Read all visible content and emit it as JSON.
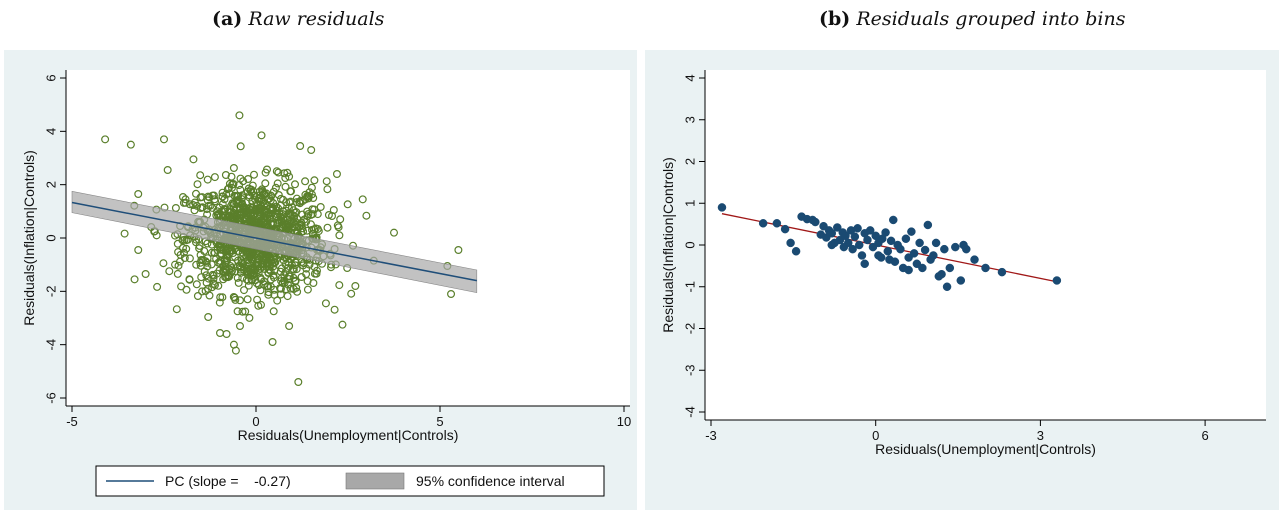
{
  "captions": {
    "a": {
      "label": "(a)",
      "text": "Raw residuals"
    },
    "b": {
      "label": "(b)",
      "text": "Residuals grouped into bins"
    }
  },
  "colors": {
    "panel_bg": "#eaf2f3",
    "scatter_raw": "#5a7f2b",
    "fit_line_a": "#1f4e79",
    "ci_band": "#a8a8a8",
    "scatter_bins": "#1a4a72",
    "fit_line_b": "#a01818"
  },
  "chart_data": [
    {
      "type": "scatter",
      "marker": "hollow-circle",
      "xlabel": "Residuals(Unemployment|Controls)",
      "ylabel": "Residuals(Inflation|Controls)",
      "xlim": [
        -5,
        10
      ],
      "ylim": [
        -6,
        6
      ],
      "xticks": [
        -5,
        0,
        5,
        10
      ],
      "yticks": [
        -6,
        -4,
        -2,
        0,
        2,
        4,
        6
      ],
      "grid": false,
      "outliers": [
        [
          -4.1,
          3.7
        ],
        [
          -3.4,
          3.5
        ],
        [
          -3.2,
          1.65
        ],
        [
          -3.3,
          -1.55
        ],
        [
          -3.0,
          -1.35
        ],
        [
          -3.2,
          -0.45
        ],
        [
          -2.5,
          3.7
        ],
        [
          -0.45,
          4.6
        ],
        [
          0.15,
          3.85
        ],
        [
          1.2,
          3.45
        ],
        [
          1.5,
          3.3
        ],
        [
          2.2,
          2.4
        ],
        [
          2.9,
          1.45
        ],
        [
          3.2,
          -0.85
        ],
        [
          3.75,
          0.2
        ],
        [
          5.2,
          -1.05
        ],
        [
          5.5,
          -0.45
        ],
        [
          5.3,
          -2.1
        ],
        [
          1.15,
          -5.4
        ],
        [
          0.45,
          -3.9
        ],
        [
          -0.8,
          -3.6
        ],
        [
          -0.6,
          -4.0
        ],
        [
          0.9,
          -3.3
        ],
        [
          2.35,
          -3.25
        ],
        [
          -2.4,
          2.55
        ],
        [
          -2.7,
          0.1
        ],
        [
          -2.2,
          -1.0
        ],
        [
          -1.7,
          2.95
        ],
        [
          1.9,
          -2.45
        ],
        [
          2.7,
          -1.8
        ]
      ],
      "cloud": {
        "mean": [
          0,
          0
        ],
        "sd": [
          0.95,
          1.05
        ],
        "n": 1100
      },
      "fit_line": {
        "x": [
          -5,
          6
        ],
        "y": [
          1.33,
          -1.6
        ]
      },
      "ci_band": {
        "x": [
          -5,
          6
        ],
        "upper": [
          1.75,
          -1.2
        ],
        "lower": [
          0.95,
          -2.05
        ]
      },
      "legend": {
        "placement": "bottom",
        "items": [
          {
            "label": "PC (slope =    -0.27)",
            "kind": "line"
          },
          {
            "label": "95% confidence interval",
            "kind": "area"
          }
        ]
      }
    },
    {
      "type": "scatter",
      "marker": "filled-circle",
      "xlabel": "Residuals(Unemployment|Controls)",
      "ylabel": "Residuals(Inflation|Controls)",
      "xlim": [
        -3,
        7
      ],
      "ylim": [
        -4,
        4
      ],
      "xticks": [
        -3,
        0,
        3,
        6
      ],
      "yticks": [
        -4,
        -3,
        -2,
        -1,
        0,
        1,
        2,
        3,
        4
      ],
      "grid": false,
      "points": [
        [
          -2.8,
          0.9
        ],
        [
          -2.05,
          0.52
        ],
        [
          -1.8,
          0.52
        ],
        [
          -1.65,
          0.38
        ],
        [
          -1.55,
          0.05
        ],
        [
          -1.45,
          -0.15
        ],
        [
          -1.35,
          0.68
        ],
        [
          -1.25,
          0.62
        ],
        [
          -1.15,
          0.6
        ],
        [
          -1.1,
          0.55
        ],
        [
          -1.0,
          0.25
        ],
        [
          -0.95,
          0.45
        ],
        [
          -0.9,
          0.18
        ],
        [
          -0.85,
          0.35
        ],
        [
          -0.8,
          0.28
        ],
        [
          -0.75,
          0.05
        ],
        [
          -0.7,
          0.42
        ],
        [
          -0.65,
          0.12
        ],
        [
          -0.6,
          0.3
        ],
        [
          -0.55,
          0.22
        ],
        [
          -0.5,
          0.05
        ],
        [
          -0.45,
          0.35
        ],
        [
          -0.42,
          -0.1
        ],
        [
          -0.38,
          0.2
        ],
        [
          -0.33,
          0.4
        ],
        [
          -0.3,
          0.0
        ],
        [
          -0.25,
          -0.25
        ],
        [
          -0.2,
          0.28
        ],
        [
          -0.15,
          0.12
        ],
        [
          -0.1,
          0.35
        ],
        [
          -0.05,
          -0.05
        ],
        [
          0.0,
          0.22
        ],
        [
          0.05,
          0.05
        ],
        [
          0.1,
          -0.3
        ],
        [
          0.12,
          0.15
        ],
        [
          0.18,
          0.3
        ],
        [
          0.22,
          -0.15
        ],
        [
          0.28,
          0.1
        ],
        [
          0.32,
          0.6
        ],
        [
          0.35,
          -0.4
        ],
        [
          0.4,
          0.0
        ],
        [
          0.45,
          -0.1
        ],
        [
          0.5,
          -0.55
        ],
        [
          0.55,
          0.15
        ],
        [
          0.6,
          -0.3
        ],
        [
          0.65,
          0.32
        ],
        [
          0.7,
          -0.2
        ],
        [
          0.75,
          -0.45
        ],
        [
          0.8,
          0.05
        ],
        [
          0.85,
          -0.55
        ],
        [
          0.9,
          -0.12
        ],
        [
          0.95,
          0.48
        ],
        [
          1.0,
          -0.35
        ],
        [
          1.05,
          -0.25
        ],
        [
          1.1,
          0.05
        ],
        [
          1.15,
          -0.75
        ],
        [
          1.2,
          -0.7
        ],
        [
          1.25,
          -0.1
        ],
        [
          1.35,
          -0.55
        ],
        [
          1.45,
          -0.05
        ],
        [
          1.55,
          -0.85
        ],
        [
          1.65,
          -0.1
        ],
        [
          1.8,
          -0.35
        ],
        [
          2.0,
          -0.55
        ],
        [
          2.3,
          -0.65
        ],
        [
          -0.58,
          -0.05
        ],
        [
          -0.2,
          -0.45
        ],
        [
          0.25,
          -0.35
        ],
        [
          0.6,
          -0.6
        ],
        [
          1.3,
          -1.0
        ],
        [
          0.05,
          -0.25
        ],
        [
          -0.8,
          0.0
        ],
        [
          1.6,
          0.0
        ],
        [
          3.3,
          -0.85
        ]
      ],
      "fit_line": {
        "x": [
          -2.8,
          3.3
        ],
        "y": [
          0.75,
          -0.88
        ]
      }
    }
  ]
}
